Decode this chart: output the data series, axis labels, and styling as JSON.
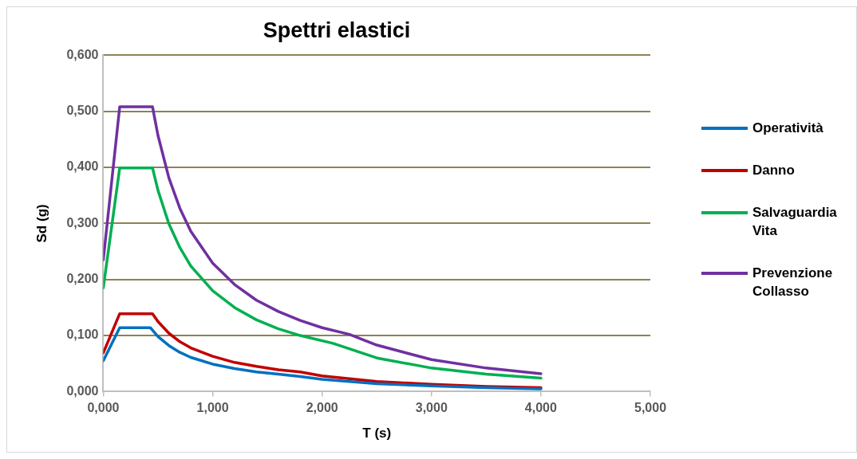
{
  "chart_data": {
    "type": "line",
    "title": "Spettri elastici",
    "xlabel": "T (s)",
    "ylabel": "Sd (g)",
    "xlim": [
      0,
      5
    ],
    "ylim": [
      0,
      0.6
    ],
    "xticks": [
      {
        "value": 0,
        "label": "0,000"
      },
      {
        "value": 1,
        "label": "1,000"
      },
      {
        "value": 2,
        "label": "2,000"
      },
      {
        "value": 3,
        "label": "3,000"
      },
      {
        "value": 4,
        "label": "4,000"
      },
      {
        "value": 5,
        "label": "5,000"
      }
    ],
    "yticks": [
      {
        "value": 0,
        "label": "0,000"
      },
      {
        "value": 0.1,
        "label": "0,100"
      },
      {
        "value": 0.2,
        "label": "0,200"
      },
      {
        "value": 0.3,
        "label": "0,300"
      },
      {
        "value": 0.4,
        "label": "0,400"
      },
      {
        "value": 0.5,
        "label": "0,500"
      },
      {
        "value": 0.6,
        "label": "0,600"
      }
    ],
    "grid": "y",
    "legend": "right",
    "marker": "none",
    "line_style": "solid",
    "series": [
      {
        "name": "Operatività",
        "color": "#0070c0",
        "x": [
          0,
          0.15,
          0.43,
          0.5,
          0.6,
          0.7,
          0.8,
          1.0,
          1.2,
          1.4,
          1.6,
          1.8,
          2.0,
          2.5,
          3.0,
          3.5,
          4.0
        ],
        "values": [
          0.055,
          0.114,
          0.114,
          0.098,
          0.082,
          0.07,
          0.061,
          0.049,
          0.041,
          0.035,
          0.031,
          0.027,
          0.022,
          0.014,
          0.01,
          0.007,
          0.005
        ]
      },
      {
        "name": "Danno",
        "color": "#c00000",
        "x": [
          0,
          0.15,
          0.45,
          0.5,
          0.6,
          0.7,
          0.8,
          1.0,
          1.2,
          1.4,
          1.6,
          1.8,
          2.0,
          2.5,
          3.0,
          3.5,
          4.0
        ],
        "values": [
          0.069,
          0.139,
          0.139,
          0.125,
          0.104,
          0.089,
          0.078,
          0.063,
          0.052,
          0.045,
          0.039,
          0.035,
          0.028,
          0.018,
          0.013,
          0.009,
          0.007
        ]
      },
      {
        "name": "Salvaguardia Vita",
        "color": "#00b050",
        "x": [
          0,
          0.15,
          0.45,
          0.5,
          0.6,
          0.7,
          0.8,
          1.0,
          1.2,
          1.4,
          1.6,
          1.8,
          2.1,
          2.5,
          3.0,
          3.5,
          4.0
        ],
        "values": [
          0.185,
          0.399,
          0.399,
          0.359,
          0.299,
          0.257,
          0.224,
          0.18,
          0.15,
          0.128,
          0.112,
          0.1,
          0.086,
          0.06,
          0.042,
          0.031,
          0.024
        ]
      },
      {
        "name": "Prevenzione Collasso",
        "color": "#7030a0",
        "x": [
          0,
          0.15,
          0.45,
          0.5,
          0.6,
          0.7,
          0.8,
          1.0,
          1.2,
          1.4,
          1.6,
          1.8,
          2.0,
          2.25,
          2.5,
          3.0,
          3.5,
          4.0
        ],
        "values": [
          0.235,
          0.508,
          0.508,
          0.457,
          0.381,
          0.327,
          0.286,
          0.229,
          0.191,
          0.163,
          0.143,
          0.127,
          0.114,
          0.102,
          0.083,
          0.057,
          0.042,
          0.032
        ]
      }
    ]
  }
}
